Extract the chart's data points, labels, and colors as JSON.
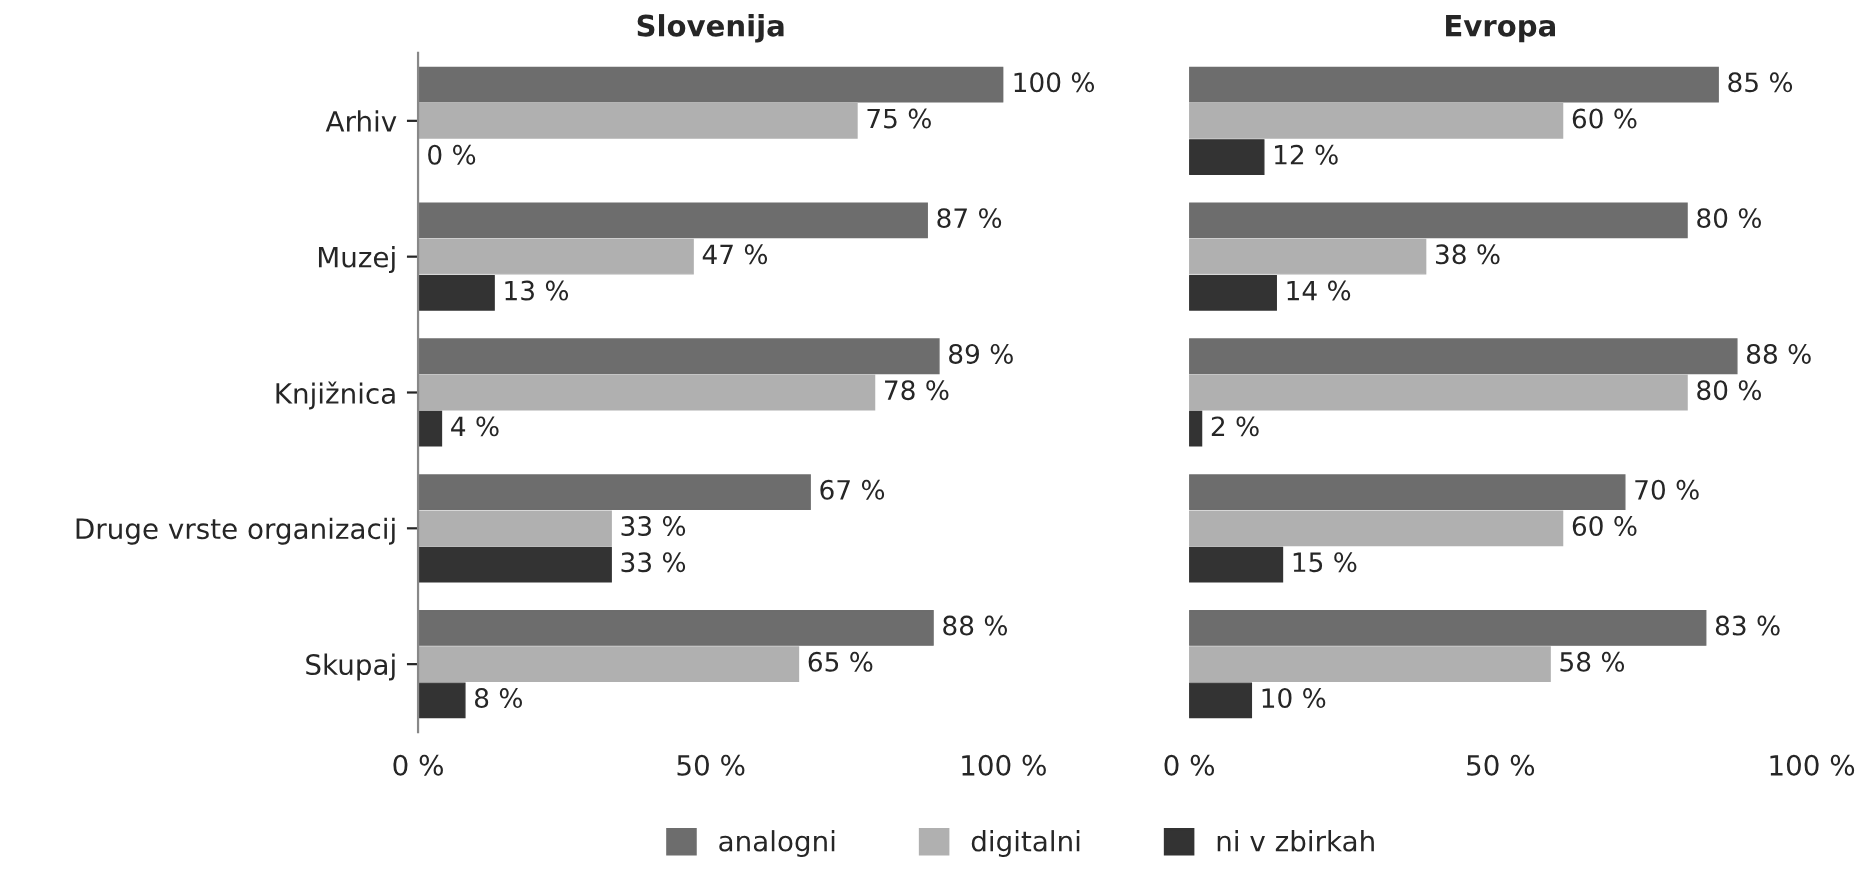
{
  "chart_data": [
    {
      "type": "bar",
      "orientation": "horizontal",
      "title": "Slovenija",
      "categories": [
        "Arhiv",
        "Muzej",
        "Knjižnica",
        "Druge vrste organizacij",
        "Skupaj"
      ],
      "series": [
        {
          "name": "analogni",
          "color": "#6d6d6d",
          "values": [
            100,
            87,
            89,
            67,
            88
          ],
          "value_labels": [
            "100 %",
            "87 %",
            "89 %",
            "67 %",
            "88 %"
          ]
        },
        {
          "name": "digitalni",
          "color": "#b0b0b0",
          "values": [
            75,
            47,
            78,
            33,
            65
          ],
          "value_labels": [
            "75 %",
            "47 %",
            "78 %",
            "33 %",
            "65 %"
          ]
        },
        {
          "name": "ni v zbirkah",
          "color": "#333333",
          "values": [
            0,
            13,
            4,
            33,
            8
          ],
          "value_labels": [
            "0 %",
            "13 %",
            "4 %",
            "33 %",
            "8 %"
          ]
        }
      ],
      "xlim": [
        0,
        100
      ],
      "xticks": [
        {
          "value": 0,
          "label": "0 %"
        },
        {
          "value": 50,
          "label": "50 %"
        },
        {
          "value": 100,
          "label": "100 %"
        }
      ],
      "legend": "bottom",
      "grid": false
    },
    {
      "type": "bar",
      "orientation": "horizontal",
      "title": "Evropa",
      "categories": [
        null,
        null,
        null,
        null,
        null
      ],
      "series": [
        {
          "color": "#6d6d6d",
          "values": [
            85,
            80,
            88,
            70,
            83
          ],
          "value_labels": [
            "85 %",
            "80 %",
            "88 %",
            "70 %",
            "83 %"
          ]
        },
        {
          "color": "#b0b0b0",
          "values": [
            60,
            38,
            80,
            60,
            58
          ],
          "value_labels": [
            "60 %",
            "38 %",
            "80 %",
            "60 %",
            "58 %"
          ]
        },
        {
          "color": "#333333",
          "values": [
            12,
            14,
            2,
            15,
            10
          ],
          "value_labels": [
            "12 %",
            "14 %",
            "2 %",
            "15 %",
            "10 %"
          ]
        }
      ],
      "xlim": [
        0,
        100
      ],
      "xticks": [
        {
          "value": 0,
          "label": "0 %"
        },
        {
          "value": 50,
          "label": "50 %"
        },
        {
          "value": 100,
          "label": "100 %"
        }
      ],
      "tick_labels": "x",
      "grid": false
    }
  ]
}
